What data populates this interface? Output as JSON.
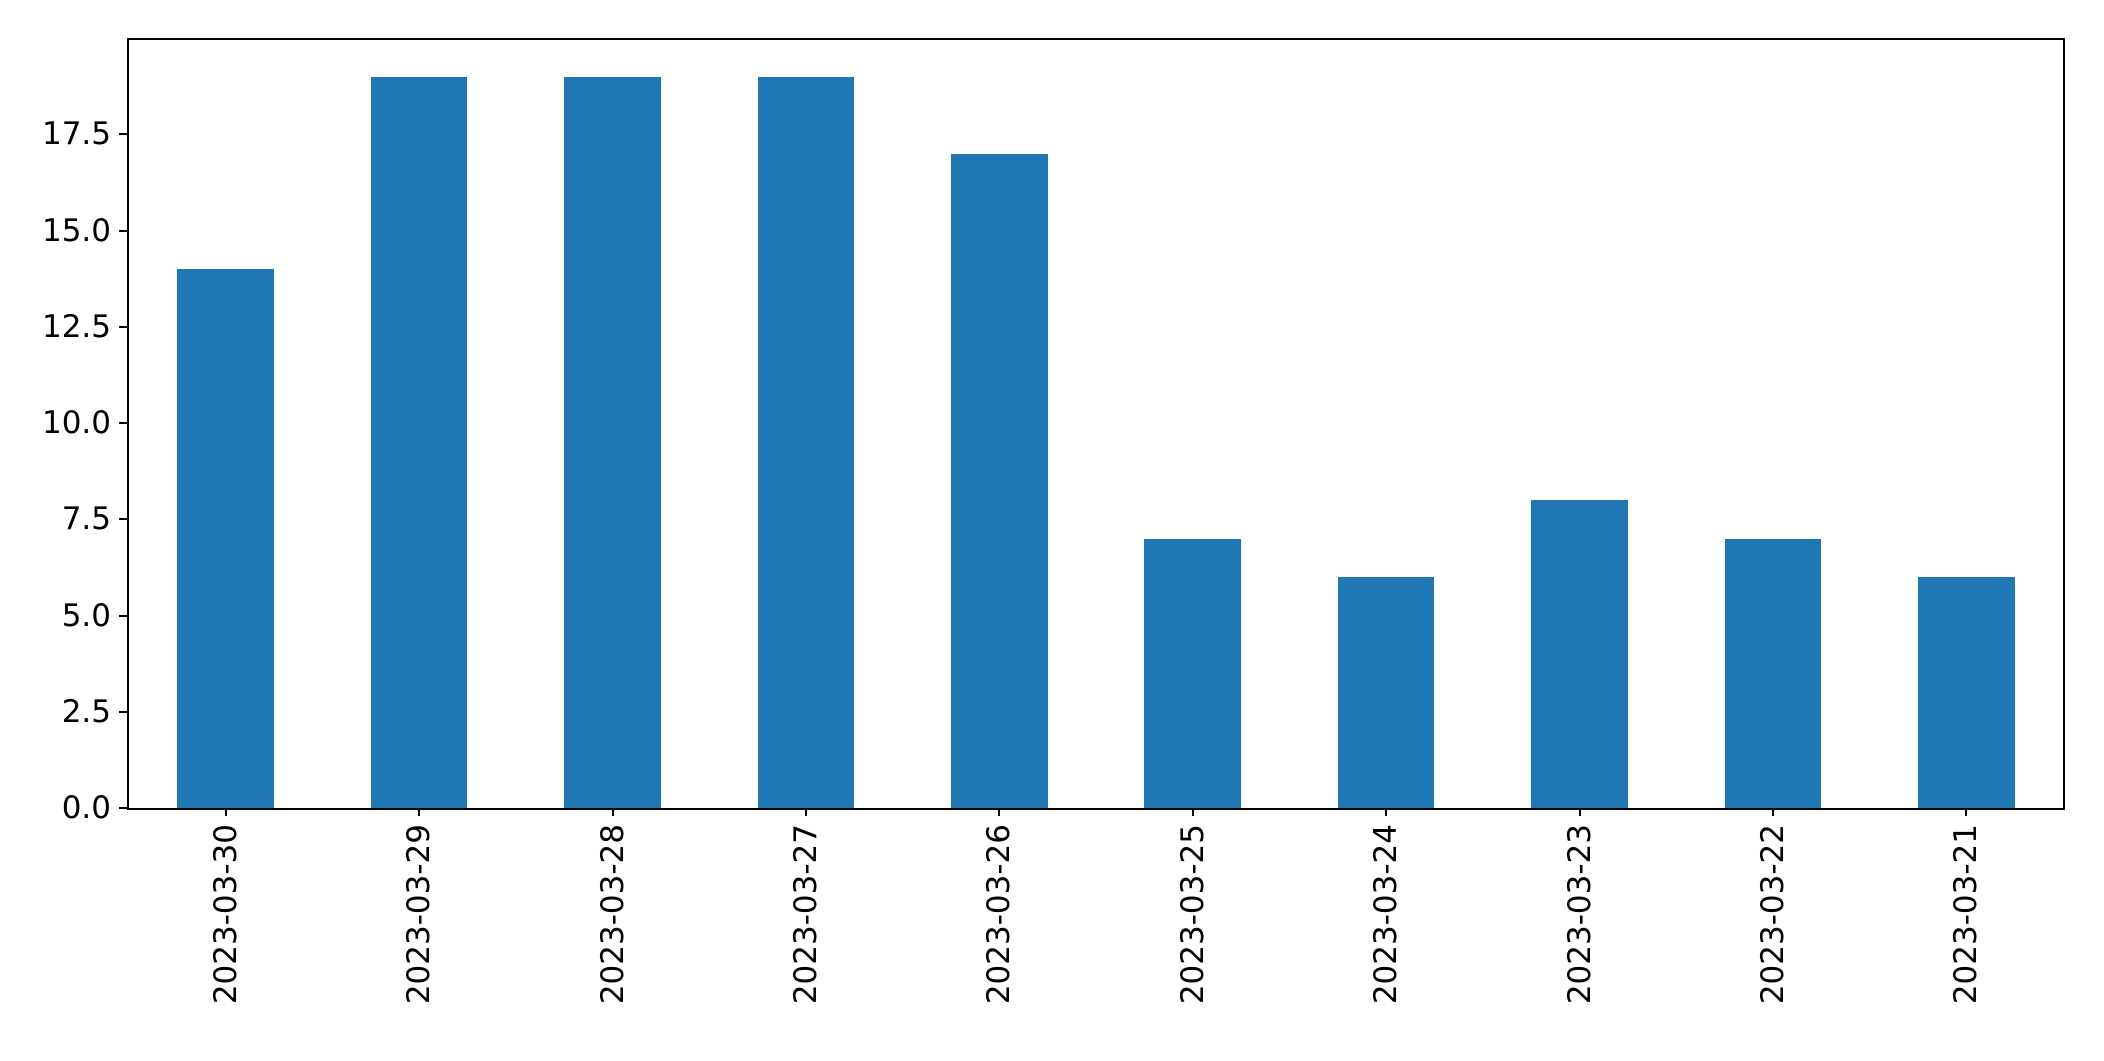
{
  "figure": {
    "background": "#ffffff"
  },
  "chart_data": {
    "type": "bar",
    "title": "",
    "xlabel": "",
    "ylabel": "",
    "categories": [
      "2023-03-30",
      "2023-03-29",
      "2023-03-28",
      "2023-03-27",
      "2023-03-26",
      "2023-03-25",
      "2023-03-24",
      "2023-03-23",
      "2023-03-22",
      "2023-03-21"
    ],
    "values": [
      14,
      19,
      19,
      19,
      17,
      7,
      6,
      8,
      7,
      6
    ],
    "ylim": [
      0,
      19.95
    ],
    "yticks": [
      0.0,
      2.5,
      5.0,
      7.5,
      10.0,
      12.5,
      15.0,
      17.5
    ],
    "ytick_labels": [
      "0.0",
      "2.5",
      "5.0",
      "7.5",
      "10.0",
      "12.5",
      "15.0",
      "17.5"
    ],
    "x_tick_rotation_deg": 90,
    "bar_color": "#1f77b4",
    "bar_width_fraction": 0.5,
    "grid": false,
    "legend": null,
    "spine_color": "#000000"
  }
}
